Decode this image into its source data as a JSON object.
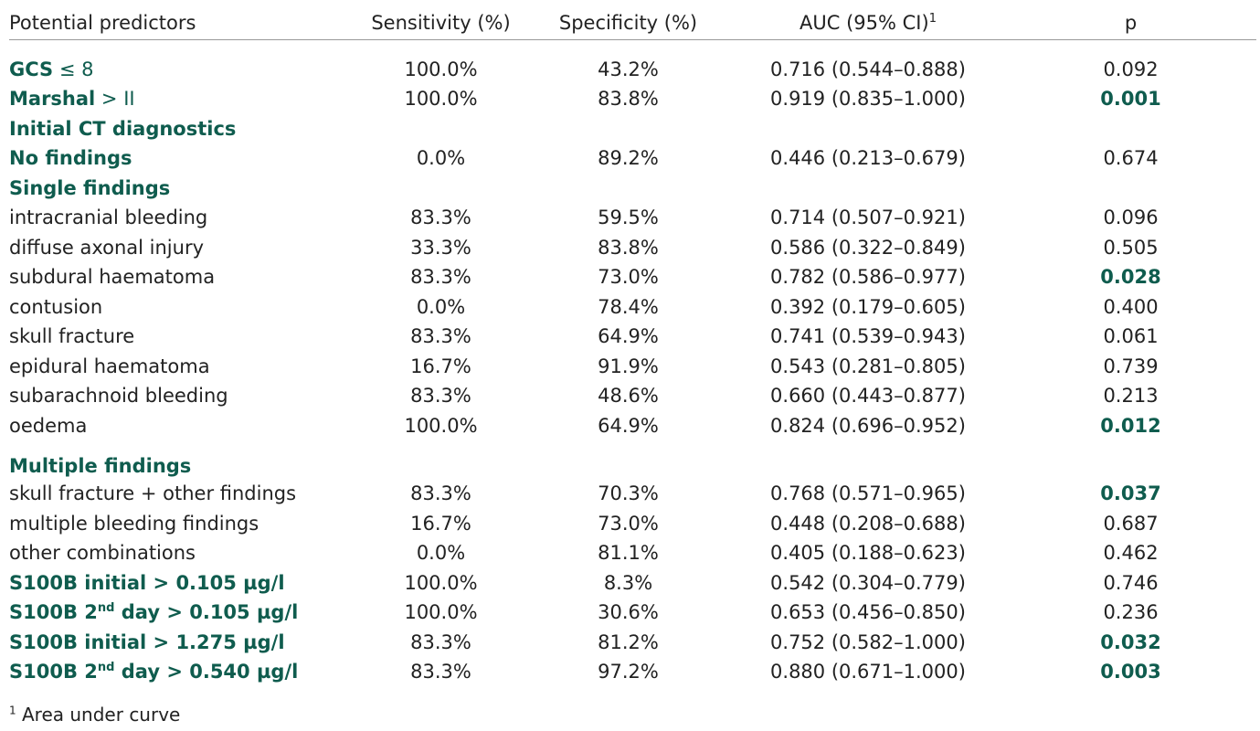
{
  "table": {
    "headers": [
      "Potential predictors",
      "Sensitivity (%)",
      "Specificity (%)",
      "AUC (95% CI)",
      "p"
    ],
    "auc_header_sup": "1",
    "rows": [
      {
        "pre": "GCS",
        "op": " ≤ 8",
        "sup": "",
        "post": "",
        "sens": "100.0%",
        "spec": "43.2%",
        "auc": "0.716 (0.544–0.888)",
        "p": "0.092",
        "bold": true,
        "sig": false,
        "cls": "first"
      },
      {
        "pre": "Marshal",
        "op": " > II",
        "sup": "",
        "post": "",
        "sens": "100.0%",
        "spec": "83.8%",
        "auc": "0.919 (0.835–1.000)",
        "p": "0.001",
        "bold": true,
        "sig": true,
        "cls": ""
      },
      {
        "pre": "Initial CT diagnostics",
        "op": "",
        "sup": "",
        "post": "",
        "sens": "",
        "spec": "",
        "auc": "",
        "p": "",
        "bold": true,
        "sig": false,
        "cls": ""
      },
      {
        "pre": "No findings",
        "op": "",
        "sup": "",
        "post": "",
        "sens": "0.0%",
        "spec": "89.2%",
        "auc": "0.446 (0.213–0.679)",
        "p": "0.674",
        "bold": true,
        "sig": false,
        "cls": ""
      },
      {
        "pre": "Single findings",
        "op": "",
        "sup": "",
        "post": "",
        "sens": "",
        "spec": "",
        "auc": "",
        "p": "",
        "bold": true,
        "sig": false,
        "cls": ""
      },
      {
        "pre": "intracranial bleeding",
        "op": "",
        "sup": "",
        "post": "",
        "sens": "83.3%",
        "spec": "59.5%",
        "auc": "0.714 (0.507–0.921)",
        "p": "0.096",
        "bold": false,
        "sig": false,
        "cls": ""
      },
      {
        "pre": "diffuse axonal injury",
        "op": "",
        "sup": "",
        "post": "",
        "sens": "33.3%",
        "spec": "83.8%",
        "auc": "0.586 (0.322–0.849)",
        "p": "0.505",
        "bold": false,
        "sig": false,
        "cls": ""
      },
      {
        "pre": "subdural haematoma",
        "op": "",
        "sup": "",
        "post": "",
        "sens": "83.3%",
        "spec": "73.0%",
        "auc": "0.782 (0.586–0.977)",
        "p": "0.028",
        "bold": false,
        "sig": true,
        "cls": ""
      },
      {
        "pre": "contusion",
        "op": "",
        "sup": "",
        "post": "",
        "sens": "0.0%",
        "spec": "78.4%",
        "auc": "0.392 (0.179–0.605)",
        "p": "0.400",
        "bold": false,
        "sig": false,
        "cls": ""
      },
      {
        "pre": "skull fracture",
        "op": "",
        "sup": "",
        "post": "",
        "sens": "83.3%",
        "spec": "64.9%",
        "auc": "0.741 (0.539–0.943)",
        "p": "0.061",
        "bold": false,
        "sig": false,
        "cls": ""
      },
      {
        "pre": "epidural haematoma",
        "op": "",
        "sup": "",
        "post": "",
        "sens": "16.7%",
        "spec": "91.9%",
        "auc": "0.543 (0.281–0.805)",
        "p": "0.739",
        "bold": false,
        "sig": false,
        "cls": ""
      },
      {
        "pre": "subarachnoid bleeding",
        "op": "",
        "sup": "",
        "post": "",
        "sens": "83.3%",
        "spec": "48.6%",
        "auc": "0.660 (0.443–0.877)",
        "p": "0.213",
        "bold": false,
        "sig": false,
        "cls": ""
      },
      {
        "pre": "oedema",
        "op": "",
        "sup": "",
        "post": "",
        "sens": "100.0%",
        "spec": "64.9%",
        "auc": "0.824 (0.696–0.952)",
        "p": "0.012",
        "bold": false,
        "sig": true,
        "cls": ""
      },
      {
        "pre": "Multiple findings",
        "op": "",
        "sup": "",
        "post": "",
        "sens": "",
        "spec": "",
        "auc": "",
        "p": "",
        "bold": true,
        "sig": false,
        "cls": "gap"
      },
      {
        "pre": "skull fracture + other findings",
        "op": "",
        "sup": "",
        "post": "",
        "sens": "83.3%",
        "spec": "70.3%",
        "auc": "0.768 (0.571–0.965)",
        "p": "0.037",
        "bold": false,
        "sig": true,
        "cls": ""
      },
      {
        "pre": "multiple bleeding findings",
        "op": "",
        "sup": "",
        "post": "",
        "sens": "16.7%",
        "spec": "73.0%",
        "auc": "0.448 (0.208–0.688)",
        "p": "0.687",
        "bold": false,
        "sig": false,
        "cls": ""
      },
      {
        "pre": "other combinations",
        "op": "",
        "sup": "",
        "post": "",
        "sens": "0.0%",
        "spec": "81.1%",
        "auc": "0.405 (0.188–0.623)",
        "p": "0.462",
        "bold": false,
        "sig": false,
        "cls": ""
      },
      {
        "pre": "S100B initial > 0.105 µg/l",
        "op": "",
        "sup": "",
        "post": "",
        "sens": "100.0%",
        "spec": "8.3%",
        "auc": "0.542 (0.304–0.779)",
        "p": "0.746",
        "bold": true,
        "sig": false,
        "cls": ""
      },
      {
        "pre": "S100B 2",
        "op": "",
        "sup": "nd",
        "post": " day > 0.105 µg/l",
        "sens": "100.0%",
        "spec": "30.6%",
        "auc": "0.653 (0.456–0.850)",
        "p": "0.236",
        "bold": true,
        "sig": false,
        "cls": ""
      },
      {
        "pre": "S100B initial > 1.275 µg/l",
        "op": "",
        "sup": "",
        "post": "",
        "sens": "83.3%",
        "spec": "81.2%",
        "auc": "0.752 (0.582–1.000)",
        "p": "0.032",
        "bold": true,
        "sig": true,
        "cls": ""
      },
      {
        "pre": "S100B 2",
        "op": "",
        "sup": "nd",
        "post": " day > 0.540 µg/l",
        "sens": "83.3%",
        "spec": "97.2%",
        "auc": "0.880 (0.671–1.000)",
        "p": "0.003",
        "bold": true,
        "sig": true,
        "cls": ""
      }
    ]
  },
  "footnote": {
    "sup": "1",
    "text": " Area under curve"
  },
  "colors": {
    "accent": "#0f5c4e",
    "text": "#222222",
    "rule": "#999999"
  }
}
